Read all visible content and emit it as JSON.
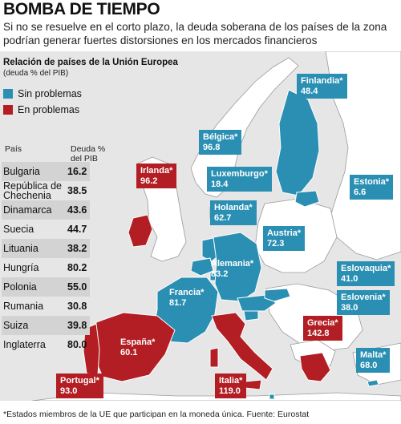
{
  "headline": "BOMBA DE TIEMPO",
  "lede": "Si no se resuelve en el corto plazo, la deuda soberana de los países de la zona podrían generar fuertes distorsiones en los mercados financieros",
  "legend": {
    "title": "Relación de países de la Unión Europea",
    "subtitle": "(deuda % del PIB)",
    "items": [
      {
        "label": "Sin problemas",
        "color": "#2a8fb3"
      },
      {
        "label": "En problemas",
        "color": "#b21e23"
      }
    ]
  },
  "colors": {
    "blue": "#2a8fb3",
    "red": "#b21e23",
    "land": "#ffffff",
    "sea": "#e6e6e6"
  },
  "table": {
    "headers": {
      "country": "País",
      "debt": "Deuda %\ndel PIB"
    },
    "rows": [
      {
        "country": "Bulgaria",
        "value": "16.2"
      },
      {
        "country": "República de Chechenia",
        "value": "38.5"
      },
      {
        "country": "Dinamarca",
        "value": "43.6"
      },
      {
        "country": "Suecia",
        "value": "44.7"
      },
      {
        "country": "Lituania",
        "value": "38.2"
      },
      {
        "country": "Hungría",
        "value": "80.2"
      },
      {
        "country": "Polonia",
        "value": "55.0"
      },
      {
        "country": "Rumania",
        "value": "30.8"
      },
      {
        "country": "Suiza",
        "value": "39.8"
      },
      {
        "country": "Inglaterra",
        "value": "80.0"
      }
    ]
  },
  "callouts": [
    {
      "id": "finlandia",
      "name": "Finlandia*",
      "value": "48.4",
      "status": "blue"
    },
    {
      "id": "belgica",
      "name": "Bélgica*",
      "value": "96.8",
      "status": "blue"
    },
    {
      "id": "irlanda",
      "name": "Irlanda*",
      "value": "96.2",
      "status": "red"
    },
    {
      "id": "luxemburgo",
      "name": "Luxemburgo*",
      "value": "18.4",
      "status": "blue"
    },
    {
      "id": "estonia",
      "name": "Estonia*",
      "value": "6.6",
      "status": "blue"
    },
    {
      "id": "holanda",
      "name": "Holanda*",
      "value": "62.7",
      "status": "blue"
    },
    {
      "id": "austria",
      "name": "Austria*",
      "value": "72.3",
      "status": "blue"
    },
    {
      "id": "alemania",
      "name": "Alemania*",
      "value": "83.2",
      "status": "blue"
    },
    {
      "id": "eslovaquia",
      "name": "Eslovaquia*",
      "value": "41.0",
      "status": "blue"
    },
    {
      "id": "francia",
      "name": "Francia*",
      "value": "81.7",
      "status": "blue"
    },
    {
      "id": "eslovenia",
      "name": "Eslovenia*",
      "value": "38.0",
      "status": "blue"
    },
    {
      "id": "grecia",
      "name": "Grecia*",
      "value": "142.8",
      "status": "red"
    },
    {
      "id": "espana",
      "name": "España*",
      "value": "60.1",
      "status": "red"
    },
    {
      "id": "malta",
      "name": "Malta*",
      "value": "68.0",
      "status": "blue"
    },
    {
      "id": "portugal",
      "name": "Portugal*",
      "value": "93.0",
      "status": "red"
    },
    {
      "id": "italia",
      "name": "Italia*",
      "value": "119.0",
      "status": "red"
    }
  ],
  "footnote": "*Estados miembros de la UE que participan en la moneda única. Fuente: Eurostat"
}
